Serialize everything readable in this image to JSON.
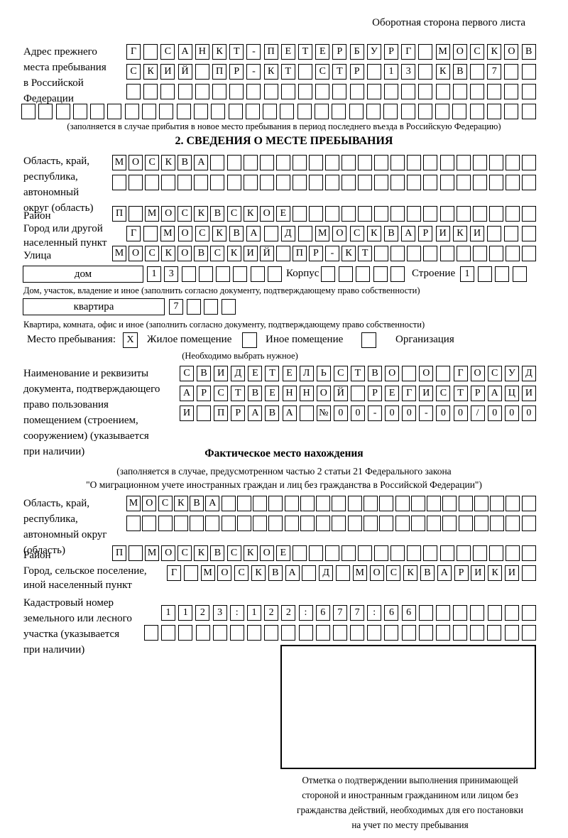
{
  "page": {
    "header_note": "Оборотная сторона первого листа"
  },
  "prev_address": {
    "label_lines": [
      "Адрес прежнего",
      "места пребывания",
      "в Российской",
      "Федерации"
    ],
    "row1": {
      "text": "Г САНКТ-ПЕТЕРБУРГ МОСКОВ",
      "len": 24
    },
    "row2": {
      "text": "СКИЙ ПР-КТ СТР 13 КВ 7",
      "len": 24
    },
    "row3": {
      "text": "",
      "len": 24
    },
    "row4": {
      "text": "",
      "len": 30
    },
    "note": "(заполняется в случае прибытия в новое место пребывания в период последнего въезда в Российскую Федерацию)"
  },
  "section2": {
    "title": "2. СВЕДЕНИЯ О МЕСТЕ ПРЕБЫВАНИЯ",
    "region": {
      "label_lines": [
        "Область, край,",
        "республика,",
        "автономный",
        "округ (область)"
      ],
      "row1": {
        "text": "МОСКВА",
        "len": 26
      },
      "row2": {
        "text": "",
        "len": 26
      }
    },
    "district": {
      "label": "Район",
      "row": {
        "text": "П МОСКВСКОЕ",
        "len": 26
      }
    },
    "city": {
      "label_lines": [
        "Город или другой",
        "населенный пункт"
      ],
      "row": {
        "text": "Г МОСКВА Д МОСКВАРИКИ",
        "len": 24
      }
    },
    "street": {
      "label": "Улица",
      "row": {
        "text": "МОСКОВСКИЙ ПР-КТ",
        "len": 26
      }
    },
    "house": {
      "box_label": "дом",
      "cells": {
        "text": "13",
        "len": 8
      },
      "korpus_label": "Корпус",
      "korpus_cells": {
        "text": "",
        "len": 5
      },
      "stroenie_label": "Строение",
      "stroenie_cells": {
        "text": "1",
        "len": 4
      },
      "note": "Дом, участок, владение и иное (заполнить согласно документу, подтверждающему право собственности)"
    },
    "apartment": {
      "box_label": "квартира",
      "cells": {
        "text": "7",
        "len": 4
      },
      "note": "Квартира, комната, офис и иное (заполнить согласно документу, подтверждающему право собственности)"
    },
    "stay_place": {
      "label": "Место пребывания:",
      "options": [
        {
          "label": "Жилое помещение",
          "mark": "X"
        },
        {
          "label": "Иное помещение",
          "mark": ""
        },
        {
          "label": "Организация",
          "mark": ""
        }
      ],
      "note": "(Необходимо выбрать нужное)"
    },
    "document": {
      "label_lines": [
        "Наименование и реквизиты",
        "документа, подтверждающего",
        "право пользования",
        "помещением (строением,",
        "сооружением) (указывается",
        "при наличии)"
      ],
      "row1": {
        "text": "СВИДЕТЕЛЬСТВО О ГОСУД",
        "len": 21
      },
      "row2": {
        "text": "АРСТВЕННОЙ РЕГИСТРАЦИ",
        "len": 21
      },
      "row3": {
        "text": "И ПРАВА №00-00-00/000",
        "len": 21
      }
    }
  },
  "actual_location": {
    "title": "Фактическое место нахождения",
    "note_line1": "(заполняется в случае, предусмотренном частью 2 статьи 21 Федерального закона",
    "note_line2": "\"О миграционном учете иностранных граждан и лиц без гражданства в Российской Федерации\")",
    "region": {
      "label_lines": [
        "Область, край,",
        "республика,",
        "автономный округ",
        "(область)"
      ],
      "row1": {
        "text": "МОСКВА",
        "len": 26
      },
      "row2": {
        "text": "",
        "len": 26
      }
    },
    "district": {
      "label": "Район",
      "row": {
        "text": "П МОСКВСКОЕ",
        "len": 26
      }
    },
    "city": {
      "label_lines": [
        "Город, сельское поселение,",
        "иной населенный пункт"
      ],
      "row": {
        "text": "Г МОСКВА Д МОСКВАРИКИ",
        "len": 22
      }
    },
    "cadastral": {
      "label_lines": [
        "Кадастровый номер",
        "земельного или лесного",
        "участка (указывается",
        "при наличии)"
      ],
      "row1": {
        "text": "1123:122:677:66",
        "len": 22
      },
      "row2": {
        "text": "",
        "len": 23
      }
    },
    "stamp_note_lines": [
      "Отметка о подтверждении выполнения принимающей",
      "стороной и иностранным гражданином или лицом без",
      "гражданства действий, необходимых для его постановки",
      "на учет по месту пребывания"
    ]
  }
}
